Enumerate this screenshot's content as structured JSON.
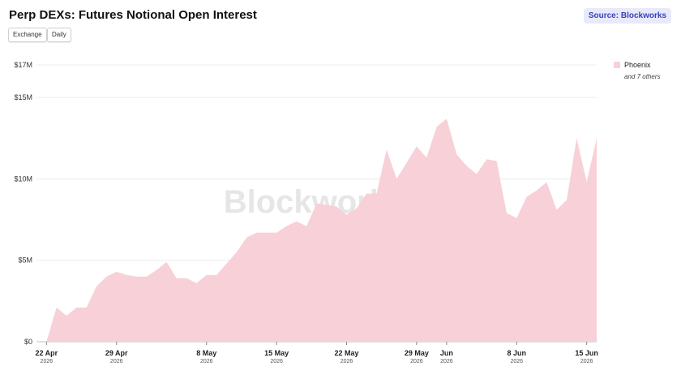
{
  "header": {
    "title": "Perp DEXs: Futures Notional Open Interest",
    "source_label": "Source: Blockworks",
    "buttons": [
      "Exchange",
      "Daily"
    ]
  },
  "watermark": "Blockworks",
  "legend": {
    "series_label": "Phoenix",
    "others_note": "and 7 others"
  },
  "colors": {
    "series": "#f8d0d8",
    "grid": "#ececec",
    "source_bg": "#e8e9fb",
    "source_text": "#3a3fb5"
  },
  "chart_data": {
    "type": "area",
    "series": [
      {
        "name": "Phoenix",
        "x": [
          "2026-04-22",
          "2026-04-23",
          "2026-04-24",
          "2026-04-25",
          "2026-04-26",
          "2026-04-27",
          "2026-04-28",
          "2026-04-29",
          "2026-04-30",
          "2026-05-01",
          "2026-05-02",
          "2026-05-03",
          "2026-05-04",
          "2026-05-05",
          "2026-05-06",
          "2026-05-07",
          "2026-05-08",
          "2026-05-09",
          "2026-05-10",
          "2026-05-11",
          "2026-05-12",
          "2026-05-13",
          "2026-05-14",
          "2026-05-15",
          "2026-05-16",
          "2026-05-17",
          "2026-05-18",
          "2026-05-19",
          "2026-05-20",
          "2026-05-21",
          "2026-05-22",
          "2026-05-23",
          "2026-05-24",
          "2026-05-25",
          "2026-05-26",
          "2026-05-27",
          "2026-05-28",
          "2026-05-29",
          "2026-05-30",
          "2026-05-31",
          "2026-06-01",
          "2026-06-02",
          "2026-06-03",
          "2026-06-04",
          "2026-06-05",
          "2026-06-06",
          "2026-06-07",
          "2026-06-08",
          "2026-06-09",
          "2026-06-10",
          "2026-06-11",
          "2026-06-12",
          "2026-06-13",
          "2026-06-14",
          "2026-06-15",
          "2026-06-16"
        ],
        "values": [
          0.0,
          2.1,
          1.6,
          2.1,
          2.1,
          3.4,
          4.0,
          4.3,
          4.1,
          4.0,
          4.0,
          4.4,
          4.9,
          3.9,
          3.9,
          3.6,
          4.1,
          4.1,
          4.8,
          5.5,
          6.4,
          6.7,
          6.7,
          6.7,
          7.1,
          7.4,
          7.1,
          8.5,
          8.4,
          8.3,
          7.8,
          8.2,
          9.1,
          9.1,
          11.8,
          10.0,
          11.0,
          12.0,
          11.3,
          13.2,
          13.7,
          11.5,
          10.8,
          10.3,
          11.2,
          11.1,
          7.9,
          7.6,
          8.9,
          9.3,
          9.8,
          8.1,
          8.7,
          12.5,
          9.8,
          12.5
        ]
      }
    ],
    "x_ticks": [
      {
        "x": "2026-04-22",
        "label": "22 Apr",
        "sub": "2026"
      },
      {
        "x": "2026-04-29",
        "label": "29 Apr",
        "sub": "2026"
      },
      {
        "x": "2026-05-08",
        "label": "8 May",
        "sub": "2026"
      },
      {
        "x": "2026-05-15",
        "label": "15 May",
        "sub": "2026"
      },
      {
        "x": "2026-05-22",
        "label": "22 May",
        "sub": "2026"
      },
      {
        "x": "2026-05-29",
        "label": "29 May",
        "sub": "2026"
      },
      {
        "x": "2026-06-01",
        "label": "Jun",
        "sub": "2026"
      },
      {
        "x": "2026-06-08",
        "label": "8 Jun",
        "sub": "2026"
      },
      {
        "x": "2026-06-15",
        "label": "15 Jun",
        "sub": "2026"
      }
    ],
    "y_ticks": [
      {
        "v": 0,
        "label": "$0"
      },
      {
        "v": 5,
        "label": "$5M"
      },
      {
        "v": 10,
        "label": "$10M"
      },
      {
        "v": 15,
        "label": "$15M"
      },
      {
        "v": 17,
        "label": "$17M"
      }
    ],
    "y_unit": "USD millions",
    "ylim": [
      0,
      17
    ],
    "x_range": [
      "2026-04-21",
      "2026-06-16"
    ],
    "grid": true,
    "legend_position": "right"
  }
}
